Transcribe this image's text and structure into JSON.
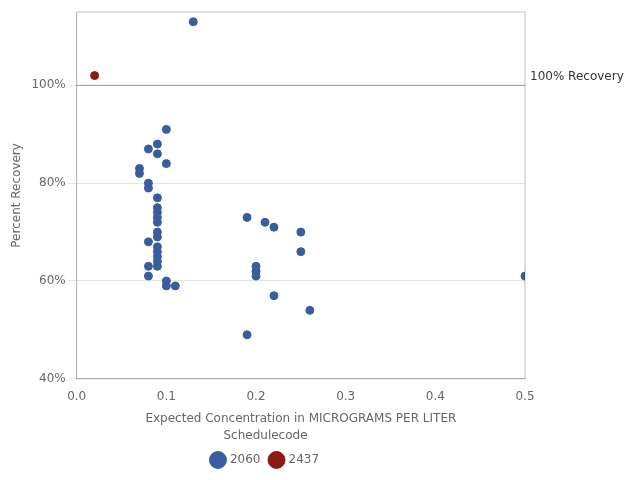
{
  "chart_data": {
    "type": "scatter",
    "xlabel": "Expected Concentration in MICROGRAMS PER LITER",
    "ylabel": "Percent Recovery",
    "xlim": [
      0.0,
      0.5
    ],
    "ylim": [
      40,
      115
    ],
    "xticks": [
      {
        "value": 0.0,
        "label": "0.0"
      },
      0.1,
      0.2,
      0.3,
      0.4,
      0.5
    ],
    "yticks": [
      {
        "value": 40,
        "label": "40%"
      },
      {
        "value": 60,
        "label": "60%"
      },
      {
        "value": 80,
        "label": "80%"
      },
      {
        "value": 100,
        "label": "100%"
      }
    ],
    "grid": "y",
    "legend": "bottom",
    "legend_title": "Schedulecode",
    "annotations": [
      {
        "y": 100,
        "text": "100% Recovery"
      }
    ],
    "series": [
      {
        "name": "2060",
        "color": "#3a5d9f",
        "x": [
          0.13,
          0.1,
          0.09,
          0.08,
          0.09,
          0.1,
          0.07,
          0.07,
          0.08,
          0.08,
          0.09,
          0.09,
          0.09,
          0.09,
          0.09,
          0.09,
          0.09,
          0.08,
          0.09,
          0.09,
          0.09,
          0.09,
          0.09,
          0.08,
          0.08,
          0.1,
          0.1,
          0.11,
          0.19,
          0.19,
          0.2,
          0.2,
          0.2,
          0.21,
          0.22,
          0.22,
          0.25,
          0.25,
          0.26,
          0.5
        ],
        "values": [
          113,
          91,
          88,
          87,
          86,
          84,
          83,
          82,
          80,
          79,
          77,
          75,
          74,
          73,
          72,
          70,
          69,
          68,
          67,
          66,
          65,
          64,
          63,
          63,
          61,
          60,
          59,
          59,
          73,
          49,
          63,
          62,
          61,
          72,
          71,
          57,
          70,
          66,
          54,
          61
        ]
      },
      {
        "name": "2437",
        "color": "#8b1a10",
        "x": [
          0.02
        ],
        "values": [
          102
        ]
      }
    ]
  }
}
